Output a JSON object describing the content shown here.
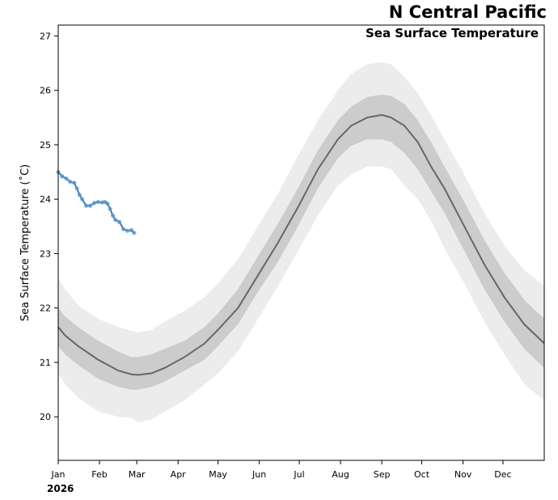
{
  "chart_data": {
    "type": "line",
    "title": "N Central Pacific",
    "subtitle": "Sea Surface Temperature",
    "ylabel": "Sea Surface Temperature ($^\\circ$C)",
    "ylabel_display": "Sea Surface Temperature (˚C)",
    "year_label": "2026",
    "xlim": [
      0,
      365
    ],
    "ylim": [
      19.2,
      27.2
    ],
    "x_ticks": [
      {
        "day": 0,
        "label": "Jan"
      },
      {
        "day": 31,
        "label": "Feb"
      },
      {
        "day": 59,
        "label": "Mar"
      },
      {
        "day": 90,
        "label": "Apr"
      },
      {
        "day": 120,
        "label": "May"
      },
      {
        "day": 151,
        "label": "Jun"
      },
      {
        "day": 181,
        "label": "Jul"
      },
      {
        "day": 212,
        "label": "Aug"
      },
      {
        "day": 243,
        "label": "Sep"
      },
      {
        "day": 273,
        "label": "Oct"
      },
      {
        "day": 304,
        "label": "Nov"
      },
      {
        "day": 334,
        "label": "Dec"
      }
    ],
    "y_ticks": [
      20,
      21,
      22,
      23,
      24,
      25,
      26,
      27
    ],
    "climatology": {
      "day": [
        0,
        5,
        15,
        30,
        45,
        55,
        60,
        70,
        80,
        95,
        110,
        120,
        135,
        150,
        165,
        180,
        195,
        210,
        220,
        232,
        243,
        250,
        260,
        270,
        280,
        290,
        305,
        320,
        335,
        350,
        365
      ],
      "mean": [
        21.65,
        21.5,
        21.3,
        21.05,
        20.85,
        20.78,
        20.77,
        20.8,
        20.9,
        21.1,
        21.35,
        21.6,
        22.0,
        22.6,
        23.2,
        23.85,
        24.55,
        25.1,
        25.35,
        25.5,
        25.55,
        25.5,
        25.35,
        25.05,
        24.6,
        24.2,
        23.5,
        22.8,
        22.2,
        21.7,
        21.35
      ],
      "band_inner_low": [
        21.3,
        21.15,
        20.95,
        20.7,
        20.55,
        20.5,
        20.5,
        20.55,
        20.65,
        20.85,
        21.05,
        21.3,
        21.7,
        22.3,
        22.85,
        23.5,
        24.2,
        24.75,
        24.98,
        25.1,
        25.1,
        25.05,
        24.85,
        24.55,
        24.15,
        23.75,
        23.05,
        22.35,
        21.75,
        21.25,
        20.9
      ],
      "band_inner_high": [
        22.0,
        21.85,
        21.65,
        21.4,
        21.2,
        21.1,
        21.1,
        21.15,
        21.25,
        21.4,
        21.65,
        21.9,
        22.35,
        22.95,
        23.55,
        24.2,
        24.9,
        25.45,
        25.7,
        25.88,
        25.92,
        25.9,
        25.75,
        25.45,
        25.05,
        24.6,
        23.95,
        23.25,
        22.65,
        22.15,
        21.8
      ],
      "band_outer_low": [
        20.8,
        20.6,
        20.35,
        20.1,
        20.0,
        19.98,
        19.9,
        19.95,
        20.1,
        20.3,
        20.6,
        20.8,
        21.2,
        21.8,
        22.4,
        23.05,
        23.7,
        24.25,
        24.45,
        24.6,
        24.6,
        24.55,
        24.25,
        24.0,
        23.6,
        23.1,
        22.45,
        21.75,
        21.15,
        20.6,
        20.3
      ],
      "band_outer_high": [
        22.55,
        22.35,
        22.05,
        21.8,
        21.65,
        21.58,
        21.55,
        21.6,
        21.75,
        21.95,
        22.2,
        22.45,
        22.9,
        23.5,
        24.1,
        24.8,
        25.45,
        26.0,
        26.3,
        26.48,
        26.52,
        26.48,
        26.25,
        25.95,
        25.55,
        25.1,
        24.45,
        23.75,
        23.15,
        22.7,
        22.4
      ]
    },
    "series": [
      {
        "name": "2026",
        "day": [
          0,
          3,
          6,
          9,
          12,
          14,
          16,
          18,
          21,
          24,
          27,
          30,
          33,
          35,
          37,
          39,
          41,
          43,
          46,
          49,
          52,
          55,
          57
        ],
        "value": [
          24.5,
          24.42,
          24.38,
          24.32,
          24.3,
          24.2,
          24.08,
          24.0,
          23.88,
          23.88,
          23.93,
          23.95,
          23.94,
          23.95,
          23.92,
          23.82,
          23.7,
          23.62,
          23.58,
          23.45,
          23.42,
          23.43,
          23.38
        ]
      }
    ],
    "colors": {
      "mean_line": "#666666",
      "band_inner": "#cccccc",
      "band_outer": "#ececec",
      "series_line": "#3a78b5",
      "series_dots": "#5a96c8"
    }
  }
}
